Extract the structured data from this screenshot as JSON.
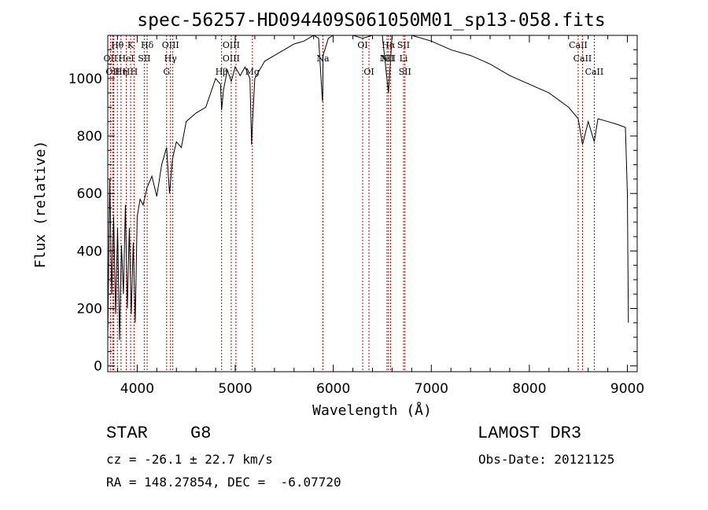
{
  "chart_data": {
    "type": "line",
    "title": "spec-56257-HD094409S061050M01_sp13-058.fits",
    "xlabel": "Wavelength (Å)",
    "ylabel": "Flux (relative)",
    "xlim": [
      3700,
      9100
    ],
    "ylim": [
      -20,
      1150
    ],
    "xticks": [
      4000,
      5000,
      6000,
      7000,
      8000,
      9000
    ],
    "xtick_labels": [
      "4000",
      "5000",
      "6000",
      "7000",
      "8000",
      "9000"
    ],
    "yticks": [
      0,
      200,
      400,
      600,
      800,
      1000
    ],
    "ytick_labels": [
      "0",
      "200",
      "400",
      "600",
      "800",
      "1000"
    ],
    "spectrum": {
      "x": [
        3700,
        3720,
        3740,
        3760,
        3780,
        3800,
        3820,
        3840,
        3860,
        3880,
        3900,
        3920,
        3940,
        3960,
        3980,
        4000,
        4030,
        4060,
        4100,
        4150,
        4200,
        4250,
        4300,
        4330,
        4360,
        4400,
        4450,
        4500,
        4600,
        4700,
        4800,
        4850,
        4861,
        4880,
        4920,
        4960,
        5000,
        5050,
        5100,
        5150,
        5167,
        5172,
        5183,
        5200,
        5300,
        5400,
        5500,
        5600,
        5700,
        5800,
        5850,
        5890,
        5893,
        5896,
        5950,
        6000,
        6100,
        6200,
        6300,
        6400,
        6500,
        6563,
        6600,
        6700,
        6800,
        7000,
        7200,
        7400,
        7600,
        7800,
        8000,
        8200,
        8400,
        8498,
        8542,
        8600,
        8662,
        8700,
        8800,
        8900,
        8980,
        9000,
        9010
      ],
      "y": [
        100,
        650,
        250,
        520,
        180,
        480,
        90,
        420,
        250,
        560,
        200,
        480,
        180,
        430,
        150,
        520,
        580,
        560,
        620,
        660,
        590,
        700,
        760,
        600,
        720,
        780,
        760,
        850,
        880,
        900,
        1000,
        980,
        890,
        960,
        1030,
        990,
        1040,
        1010,
        1040,
        1000,
        770,
        820,
        890,
        1000,
        1060,
        1080,
        1100,
        1120,
        1130,
        1150,
        1140,
        920,
        950,
        1080,
        1140,
        1150,
        1150,
        1150,
        1140,
        1160,
        1150,
        950,
        1160,
        1160,
        1150,
        1130,
        1100,
        1080,
        1050,
        1010,
        980,
        950,
        900,
        860,
        770,
        850,
        780,
        860,
        850,
        840,
        830,
        600,
        150
      ]
    },
    "lines": [
      {
        "w": 3727,
        "labels": [
          "OII"
        ],
        "row": 1
      },
      {
        "w": 3750,
        "labels": [
          "OII"
        ],
        "row": 2
      },
      {
        "w": 3760,
        "labels": [],
        "row": 0
      },
      {
        "w": 3798,
        "labels": [
          "Hθ"
        ],
        "row": 0
      },
      {
        "w": 3835,
        "labels": [
          "Hη"
        ],
        "row": 2
      },
      {
        "w": 3889,
        "labels": [
          "HeI",
          "H"
        ],
        "row": 1
      },
      {
        "w": 3933,
        "labels": [
          "K"
        ],
        "row": 0
      },
      {
        "w": 3968,
        "labels": [
          "H"
        ],
        "row": 2
      },
      {
        "w": 4072,
        "labels": [
          "SII"
        ],
        "row": 1
      },
      {
        "w": 4102,
        "labels": [
          "Hδ"
        ],
        "row": 0
      },
      {
        "w": 4300,
        "labels": [
          "G"
        ],
        "row": 2
      },
      {
        "w": 4340,
        "labels": [
          "OIII",
          "Hγ"
        ],
        "row": 0
      },
      {
        "w": 4363,
        "labels": [],
        "row": 0
      },
      {
        "w": 4861,
        "labels": [
          "Hβ"
        ],
        "row": 2
      },
      {
        "w": 4959,
        "labels": [
          "OIII",
          "OIII"
        ],
        "row": 0
      },
      {
        "w": 5007,
        "labels": [],
        "row": 0
      },
      {
        "w": 5175,
        "labels": [
          "Mg"
        ],
        "row": 2
      },
      {
        "w": 5894,
        "labels": [
          "Na"
        ],
        "row": 1
      },
      {
        "w": 6300,
        "labels": [
          "OI"
        ],
        "row": 0
      },
      {
        "w": 6364,
        "labels": [
          "OI"
        ],
        "row": 2
      },
      {
        "w": 6548,
        "labels": [
          "NII"
        ],
        "row": 1
      },
      {
        "w": 6563,
        "labels": [
          "Hα",
          "NII"
        ],
        "row": 0
      },
      {
        "w": 6584,
        "labels": [],
        "row": 0
      },
      {
        "w": 6717,
        "labels": [
          "SII",
          "Li"
        ],
        "row": 0
      },
      {
        "w": 6731,
        "labels": [
          "SII"
        ],
        "row": 2
      },
      {
        "w": 8498,
        "labels": [
          "CaII"
        ],
        "row": 0
      },
      {
        "w": 8542,
        "labels": [
          "CaII"
        ],
        "row": 1
      },
      {
        "w": 8662,
        "labels": [
          "CaII"
        ],
        "row": 2
      }
    ]
  },
  "info": {
    "object_class": "STAR",
    "subclass": "G8",
    "survey": "LAMOST DR3",
    "cz": "cz = -26.1 ± 22.7 km/s",
    "obs_date": "Obs-Date: 20121125",
    "coords": "RA = 148.27854, DEC =  -6.07720"
  }
}
